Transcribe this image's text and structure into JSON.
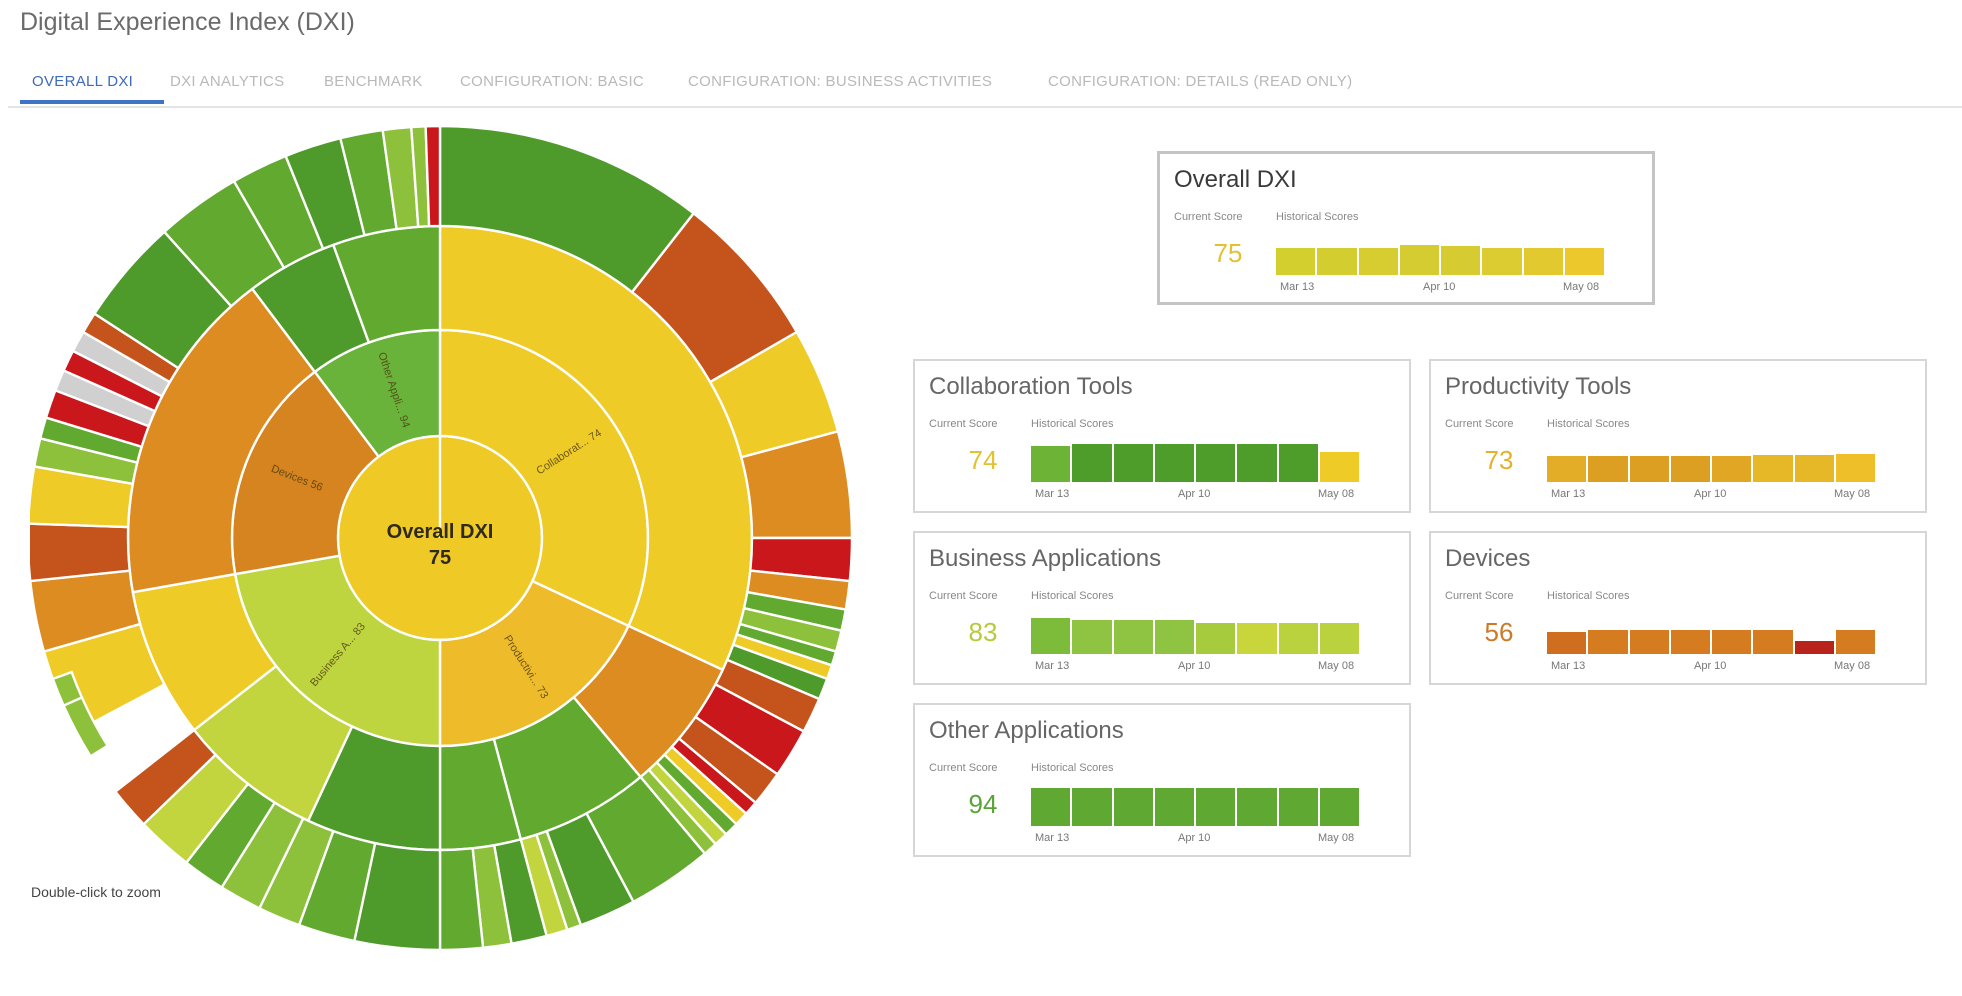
{
  "page": {
    "title": "Digital Experience Index (DXI)"
  },
  "tabs": [
    {
      "label": "OVERALL DXI",
      "active": true
    },
    {
      "label": "DXI ANALYTICS"
    },
    {
      "label": "BENCHMARK"
    },
    {
      "label": "CONFIGURATION: BASIC"
    },
    {
      "label": "CONFIGURATION: BUSINESS ACTIVITIES"
    },
    {
      "label": "CONFIGURATION: DETAILS (READ ONLY)"
    }
  ],
  "sunburst": {
    "center": {
      "label": "Overall DXI",
      "value": "75",
      "color": "#efc926"
    },
    "ring1": [
      {
        "label": "Collaborat...",
        "value": "74",
        "color": "#efcb28"
      },
      {
        "label": "Productivi...",
        "value": "73",
        "color": "#eebb2a"
      },
      {
        "label": "Business A...",
        "value": "83",
        "color": "#bfd53f"
      },
      {
        "label": "Devices",
        "value": "56",
        "color": "#d6841f"
      },
      {
        "label": "Other Appli...",
        "value": "94",
        "color": "#6ab33a"
      }
    ],
    "colors": {
      "dark_green": "#4e9a2a",
      "green": "#61a92f",
      "light_green": "#8ec13b",
      "yellow_green": "#c2d53e",
      "yellow": "#efcb28",
      "orange": "#dd8c22",
      "dark_orange": "#c4531c",
      "red": "#c9171c",
      "gray": "#d0d0d0"
    },
    "hint": "Double-click to zoom"
  },
  "cards": {
    "sub_current": "Current Score",
    "sub_hist": "Historical Scores",
    "overall": {
      "title": "Overall DXI",
      "score": "75",
      "score_color": "#e3c12f",
      "ticks": [
        "Mar 13",
        "Apr 10",
        "May 08"
      ],
      "bars": [
        {
          "h": 0.72,
          "c": "#d2cf2f"
        },
        {
          "h": 0.72,
          "c": "#d3cd30"
        },
        {
          "h": 0.72,
          "c": "#d7cc30"
        },
        {
          "h": 0.78,
          "c": "#d4cc30"
        },
        {
          "h": 0.76,
          "c": "#d6cc31"
        },
        {
          "h": 0.72,
          "c": "#dccb31"
        },
        {
          "h": 0.72,
          "c": "#e2c92f"
        },
        {
          "h": 0.72,
          "c": "#ecc82c"
        }
      ]
    },
    "collaboration": {
      "title": "Collaboration Tools",
      "score": "74",
      "score_color": "#e3c12f",
      "ticks": [
        "Mar 13",
        "Apr 10",
        "May 08"
      ],
      "bars": [
        {
          "h": 0.95,
          "c": "#6cb336"
        },
        {
          "h": 1.0,
          "c": "#4e9d2a"
        },
        {
          "h": 1.0,
          "c": "#4e9d2a"
        },
        {
          "h": 1.0,
          "c": "#4e9d2a"
        },
        {
          "h": 1.0,
          "c": "#4e9d2a"
        },
        {
          "h": 1.0,
          "c": "#4e9d2a"
        },
        {
          "h": 1.0,
          "c": "#4e9d2a"
        },
        {
          "h": 0.78,
          "c": "#efcb28"
        }
      ]
    },
    "productivity": {
      "title": "Productivity Tools",
      "score": "73",
      "score_color": "#e3b12a",
      "ticks": [
        "Mar 13",
        "Apr 10",
        "May 08"
      ],
      "bars": [
        {
          "h": 0.68,
          "c": "#e3ad27"
        },
        {
          "h": 0.68,
          "c": "#dc9f22"
        },
        {
          "h": 0.68,
          "c": "#dc9f22"
        },
        {
          "h": 0.68,
          "c": "#dc9f22"
        },
        {
          "h": 0.68,
          "c": "#e0a624"
        },
        {
          "h": 0.72,
          "c": "#e6b828"
        },
        {
          "h": 0.72,
          "c": "#e6b828"
        },
        {
          "h": 0.75,
          "c": "#eebf29"
        }
      ]
    },
    "business": {
      "title": "Business Applications",
      "score": "83",
      "score_color": "#b8c93b",
      "ticks": [
        "Mar 13",
        "Apr 10",
        "May 08"
      ],
      "bars": [
        {
          "h": 0.95,
          "c": "#7dbb3a"
        },
        {
          "h": 0.9,
          "c": "#8ec441"
        },
        {
          "h": 0.9,
          "c": "#8ec441"
        },
        {
          "h": 0.9,
          "c": "#8ec441"
        },
        {
          "h": 0.82,
          "c": "#a6cc3d"
        },
        {
          "h": 0.82,
          "c": "#c8d53b"
        },
        {
          "h": 0.82,
          "c": "#b9d23d"
        },
        {
          "h": 0.82,
          "c": "#b9d23d"
        }
      ]
    },
    "devices": {
      "title": "Devices",
      "score": "56",
      "score_color": "#cc7a2a",
      "ticks": [
        "Mar 13",
        "Apr 10",
        "May 08"
      ],
      "bars": [
        {
          "h": 0.58,
          "c": "#cf6e1e"
        },
        {
          "h": 0.62,
          "c": "#d47c1f"
        },
        {
          "h": 0.62,
          "c": "#d47c1f"
        },
        {
          "h": 0.62,
          "c": "#d47c1f"
        },
        {
          "h": 0.62,
          "c": "#d47c1f"
        },
        {
          "h": 0.62,
          "c": "#d47c1f"
        },
        {
          "h": 0.35,
          "c": "#b8231c"
        },
        {
          "h": 0.62,
          "c": "#d47c1f"
        }
      ]
    },
    "other": {
      "title": "Other Applications",
      "score": "94",
      "score_color": "#59a43a",
      "ticks": [
        "Mar 13",
        "Apr 10",
        "May 08"
      ],
      "bars": [
        {
          "h": 1.0,
          "c": "#5fa832"
        },
        {
          "h": 1.0,
          "c": "#5fa832"
        },
        {
          "h": 1.0,
          "c": "#5fa832"
        },
        {
          "h": 1.0,
          "c": "#5fa832"
        },
        {
          "h": 1.0,
          "c": "#5fa832"
        },
        {
          "h": 1.0,
          "c": "#5fa832"
        },
        {
          "h": 1.0,
          "c": "#5fa832"
        },
        {
          "h": 1.0,
          "c": "#5fa832"
        }
      ]
    }
  }
}
